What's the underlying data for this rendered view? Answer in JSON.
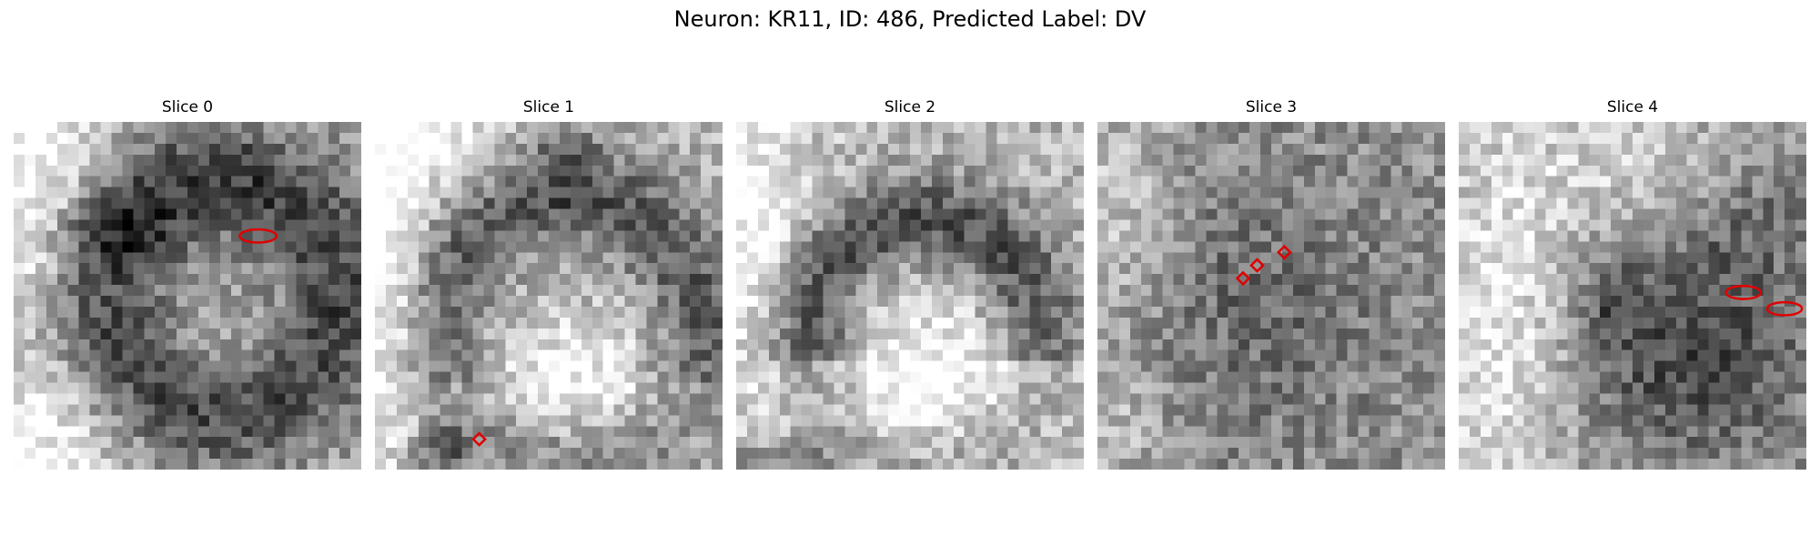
{
  "figure": {
    "title": "Neuron: KR11, ID: 486, Predicted Label: DV",
    "marker_color": "#e00000"
  },
  "panels": [
    {
      "title": "Slice 0",
      "description_seed": 11,
      "structure": "dark ring with bright lower-left corner",
      "markers": [
        {
          "kind": "ellipse",
          "cx": 22.5,
          "cy": 10.5,
          "rx": 1.7,
          "ry": 0.6
        }
      ]
    },
    {
      "title": "Slice 1",
      "description_seed": 23,
      "structure": "dark arc on top and left, bright bottom",
      "markers": [
        {
          "kind": "diamond",
          "cx": 9.6,
          "cy": 29.2,
          "r": 0.55
        }
      ]
    },
    {
      "title": "Slice 2",
      "description_seed": 37,
      "structure": "dark arch, bright bottom-center",
      "markers": []
    },
    {
      "title": "Slice 3",
      "description_seed": 41,
      "structure": "uniform noisy texture, slightly darker center",
      "markers": [
        {
          "kind": "diamond",
          "cx": 17.2,
          "cy": 12.0,
          "r": 0.55
        },
        {
          "kind": "diamond",
          "cx": 14.7,
          "cy": 13.2,
          "r": 0.55
        },
        {
          "kind": "diamond",
          "cx": 13.4,
          "cy": 14.4,
          "r": 0.55
        }
      ]
    },
    {
      "title": "Slice 4",
      "description_seed": 53,
      "structure": "bright left, dark blob lower-right",
      "markers": [
        {
          "kind": "ellipse",
          "cx": 26.2,
          "cy": 15.7,
          "rx": 1.6,
          "ry": 0.6
        },
        {
          "kind": "ellipse",
          "cx": 30.0,
          "cy": 17.2,
          "rx": 1.6,
          "ry": 0.6
        }
      ]
    }
  ]
}
